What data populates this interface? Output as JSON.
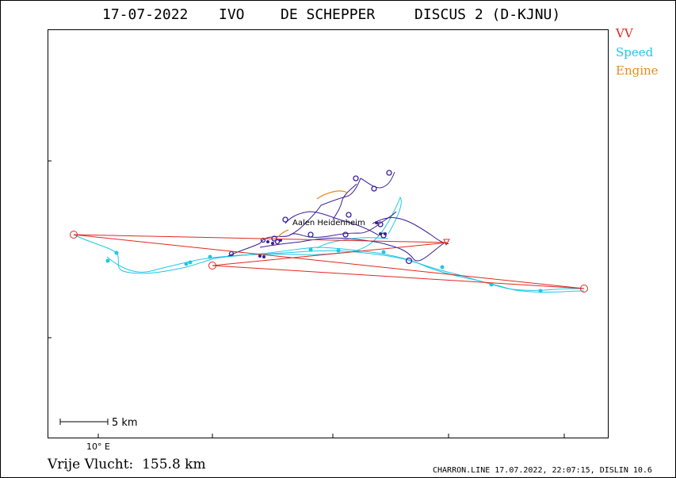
{
  "header": {
    "date": "17-07-2022",
    "site": "IVO",
    "pilot": "DE SCHEPPER",
    "glider": "DISCUS 2 (D-KJNU)"
  },
  "legend": [
    {
      "label": "VV",
      "color": "#e0281e"
    },
    {
      "label": "Speed",
      "color": "#1ec8e6"
    },
    {
      "label": "Engine",
      "color": "#e68c1e"
    }
  ],
  "map": {
    "scale_label": "5 km",
    "longitude_label": "10° E",
    "place_label": "Aalen Heidenheim"
  },
  "distance": {
    "label": "Vrije Vlucht:",
    "value": "155.8 km"
  },
  "footer": "CHARRON.LINE 17.07.2022, 22:07:15, DISLIN 10.6"
}
